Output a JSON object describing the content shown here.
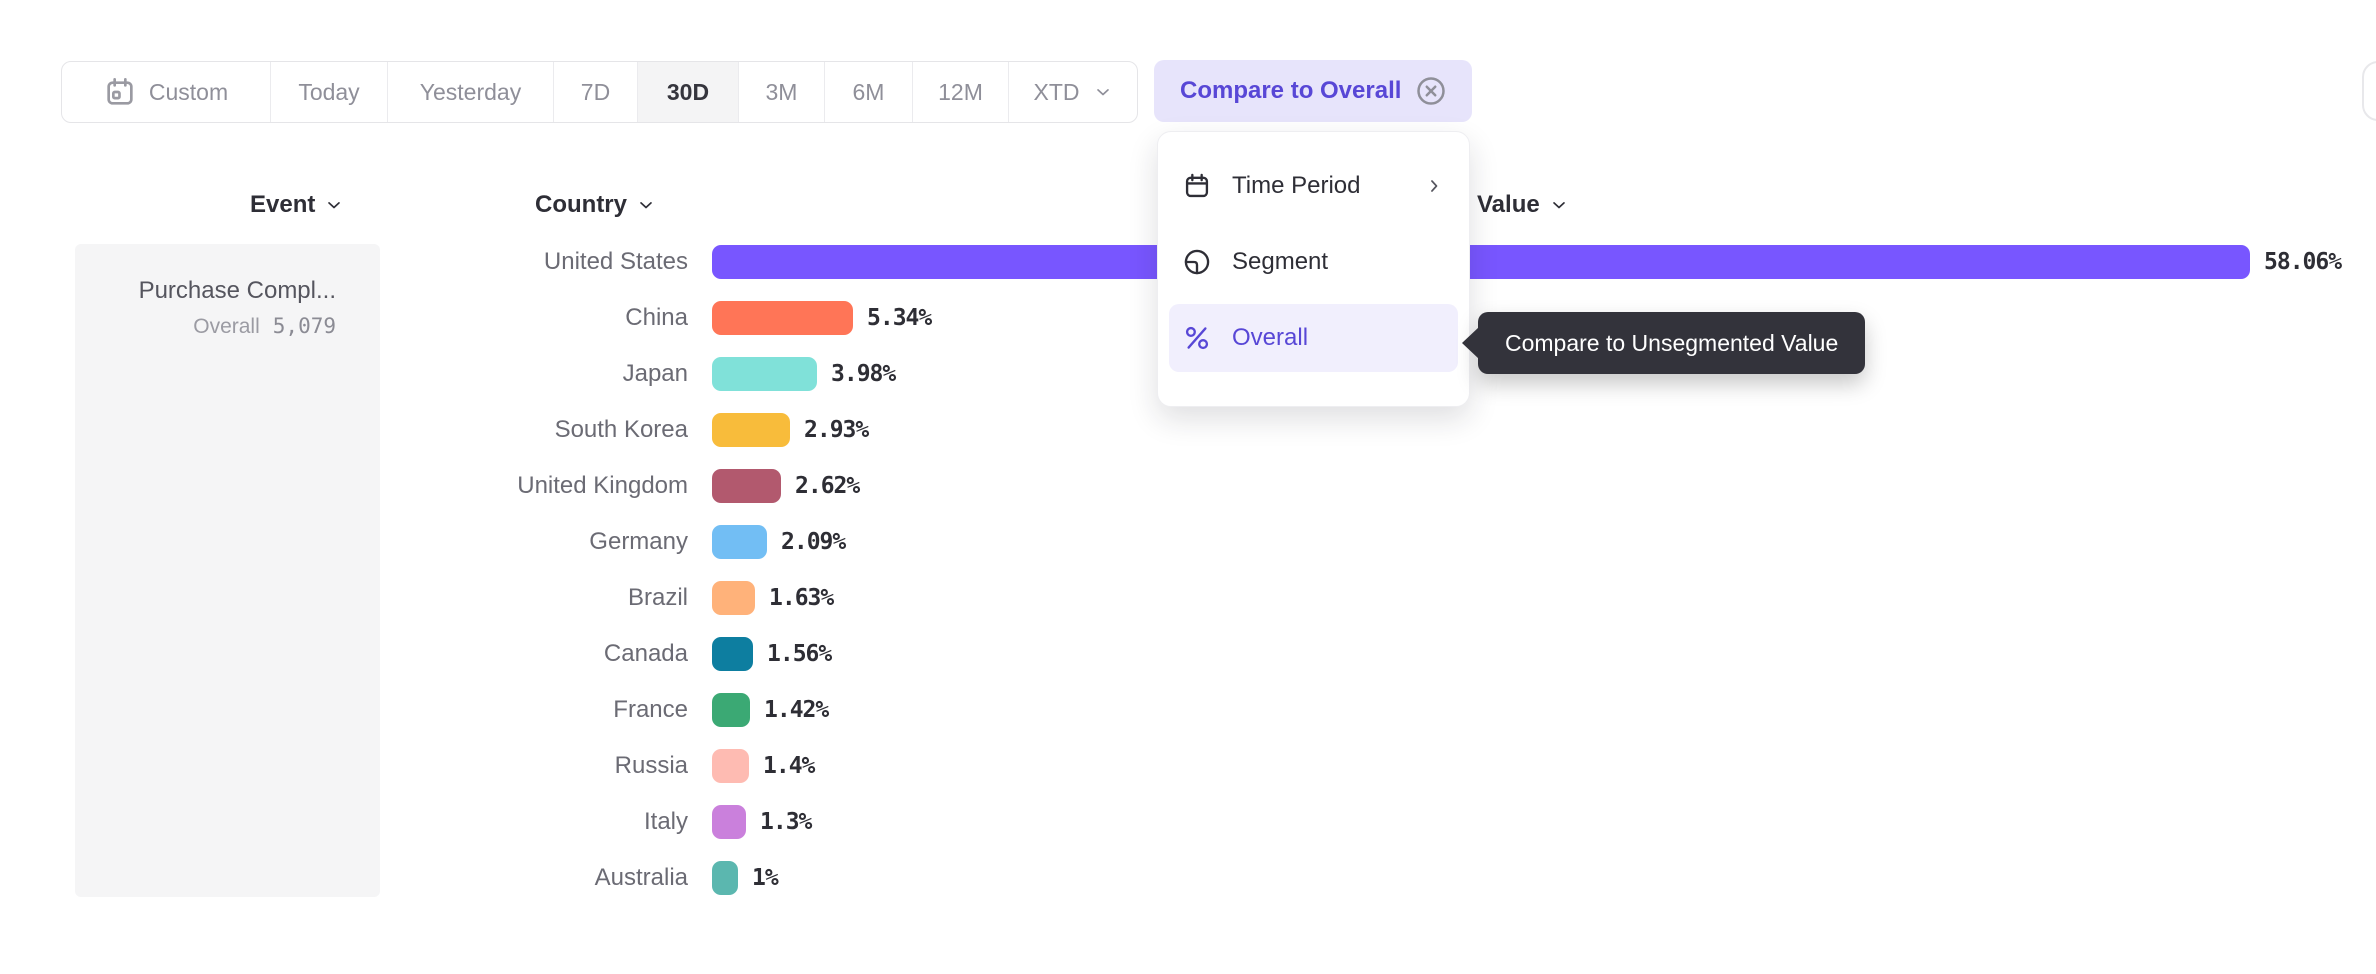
{
  "toolbar": {
    "items": [
      {
        "label": "Custom",
        "icon": "calendar-icon"
      },
      {
        "label": "Today"
      },
      {
        "label": "Yesterday"
      },
      {
        "label": "7D"
      },
      {
        "label": "30D",
        "selected": true
      },
      {
        "label": "3M"
      },
      {
        "label": "6M"
      },
      {
        "label": "12M"
      },
      {
        "label": "XTD",
        "chevron": "chevron-down-icon"
      }
    ]
  },
  "compare_pill": {
    "label": "Compare to Overall",
    "icon": "circle-x-icon"
  },
  "menu": {
    "items": [
      {
        "label": "Time Period",
        "icon": "calendar-icon",
        "chevron": "chevron-right-icon"
      },
      {
        "label": "Segment",
        "icon": "segment-icon"
      },
      {
        "label": "Overall",
        "icon": "percent-icon",
        "selected": true
      }
    ]
  },
  "tooltip": {
    "text": "Compare to Unsegmented Value"
  },
  "event_panel": {
    "header": "Event",
    "name": "Purchase Compl...",
    "overall_label": "Overall",
    "overall_value": "5,079"
  },
  "chart_data": {
    "type": "bar",
    "orientation": "horizontal",
    "column_headers": [
      "Event",
      "Country",
      "Value"
    ],
    "categories": [
      "United States",
      "China",
      "Japan",
      "South Korea",
      "United Kingdom",
      "Germany",
      "Brazil",
      "Canada",
      "France",
      "Russia",
      "Italy",
      "Australia"
    ],
    "values": [
      58.06,
      5.34,
      3.98,
      2.93,
      2.62,
      2.09,
      1.63,
      1.56,
      1.42,
      1.4,
      1.3,
      1.0
    ],
    "value_labels": [
      "58.06%",
      "5.34%",
      "3.98%",
      "2.93%",
      "2.62%",
      "2.09%",
      "1.63%",
      "1.56%",
      "1.42%",
      "1.4%",
      "1.3%",
      "1%"
    ],
    "colors": [
      "#7856FF",
      "#FF7557",
      "#80E1D9",
      "#F8BC3B",
      "#B2596E",
      "#72BEF4",
      "#FFB27A",
      "#0D7EA0",
      "#3BA974",
      "#FEBBB2",
      "#CA80DC",
      "#5BB7AF"
    ],
    "xlim": [
      0,
      58.06
    ],
    "grid": false,
    "legend": false
  },
  "colors": {
    "accent_purple": "#7856FF",
    "ui_purple": "#5847D6",
    "pill_bg": "#E7E4FB",
    "tooltip_bg": "#33333B",
    "selected_tab_bg": "#F4F4F5",
    "card_bg": "#F5F5F6"
  }
}
